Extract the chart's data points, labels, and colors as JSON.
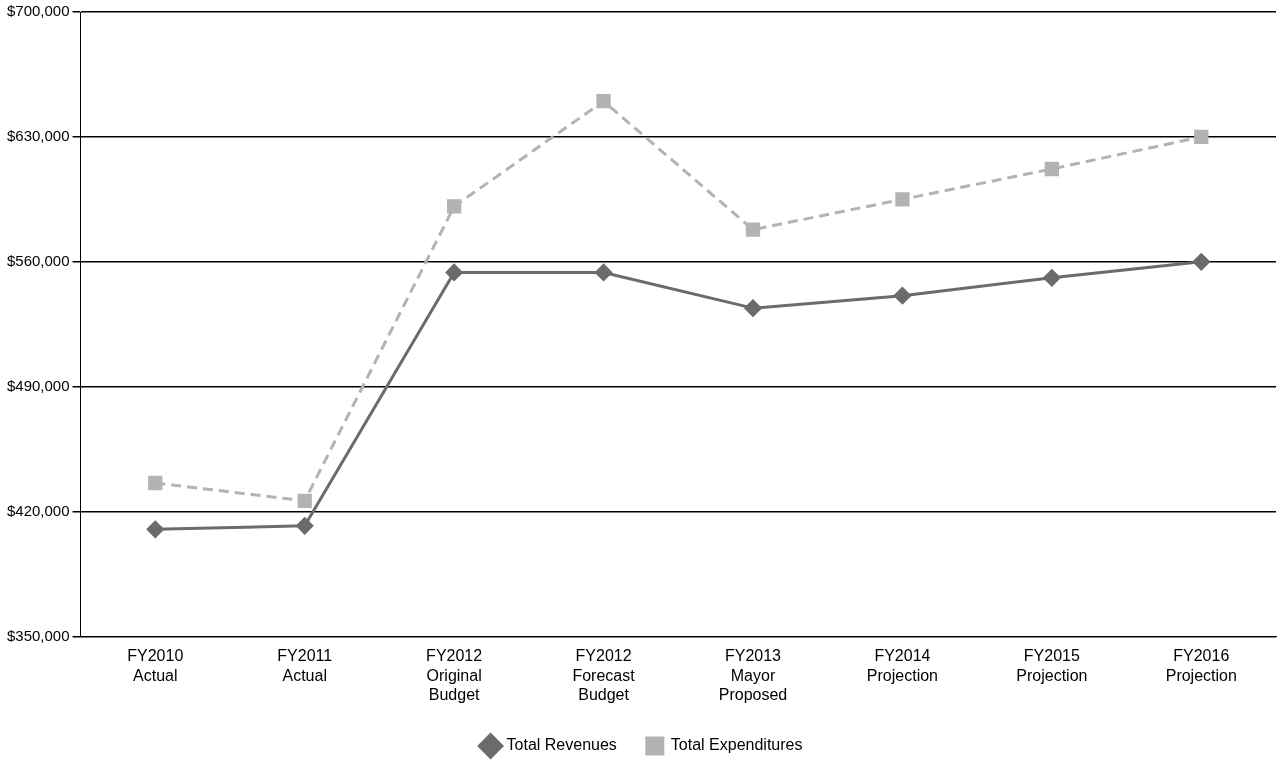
{
  "chart_data": {
    "type": "line",
    "categories": [
      "FY2010\nActual",
      "FY2011\nActual",
      "FY2012\nOriginal\nBudget",
      "FY2012\nForecast\nBudget",
      "FY2013\nMayor\nProposed",
      "FY2014\nProjection",
      "FY2015\nProjection",
      "FY2016\nProjection"
    ],
    "series": [
      {
        "name": "Total Revenues",
        "color": "#6b6b6b",
        "marker": "diamond",
        "line_style": "solid",
        "values": [
          410000,
          412000,
          554000,
          554000,
          534000,
          541000,
          551000,
          560000
        ]
      },
      {
        "name": "Total Expenditures",
        "color": "#b3b3b3",
        "marker": "square",
        "line_style": "dashed",
        "values": [
          436000,
          426000,
          591000,
          650000,
          578000,
          595000,
          612000,
          630000
        ]
      }
    ],
    "ylim": [
      350000,
      700000
    ],
    "yticks": [
      {
        "value": 350000,
        "label": "$350,000"
      },
      {
        "value": 420000,
        "label": "$420,000"
      },
      {
        "value": 490000,
        "label": "$490,000"
      },
      {
        "value": 560000,
        "label": "$560,000"
      },
      {
        "value": 630000,
        "label": "$630,000"
      },
      {
        "value": 700000,
        "label": "$700,000"
      }
    ],
    "grid": "y",
    "legend": "bottom"
  }
}
